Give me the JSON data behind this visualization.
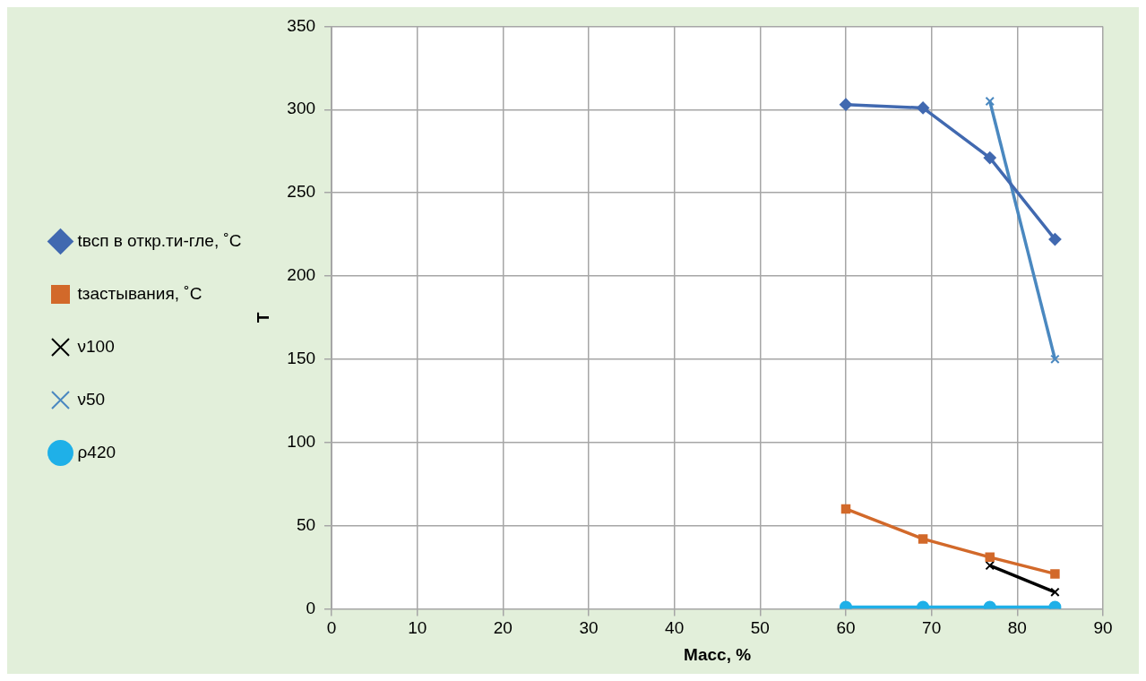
{
  "chart_data": {
    "type": "line",
    "xlabel": "Масс, %",
    "ylabel": "Т",
    "xlim": [
      0,
      90
    ],
    "xticks": [
      0,
      10,
      20,
      30,
      40,
      50,
      60,
      70,
      80,
      90
    ],
    "ylim": [
      0,
      350
    ],
    "yticks": [
      0,
      50,
      100,
      150,
      200,
      250,
      300,
      350
    ],
    "grid": true,
    "legend": "left",
    "line_style": "solid",
    "series": [
      {
        "name": "tвсп в откр.ти-гле, ˚С",
        "color": "#4169b0",
        "marker": "diamond",
        "x": [
          60,
          69,
          76.8,
          84.4
        ],
        "values": [
          303,
          301,
          271,
          222
        ]
      },
      {
        "name": "tзастывания, ˚С",
        "color": "#d2692a",
        "marker": "square",
        "x": [
          60,
          69,
          76.8,
          84.4
        ],
        "values": [
          60,
          42,
          31,
          21
        ]
      },
      {
        "name": "ν100",
        "color": "#000000",
        "marker": "cross",
        "x": [
          76.8,
          84.4
        ],
        "values": [
          26,
          10
        ]
      },
      {
        "name": "ν50",
        "color": "#4a88c0",
        "marker": "cross",
        "x": [
          76.8,
          84.4
        ],
        "values": [
          305,
          150
        ]
      },
      {
        "name": "ρ420",
        "color": "#1fb0e8",
        "marker": "circle",
        "x": [
          60,
          69,
          76.8,
          84.4
        ],
        "values": [
          1,
          1,
          1,
          1
        ]
      }
    ]
  }
}
